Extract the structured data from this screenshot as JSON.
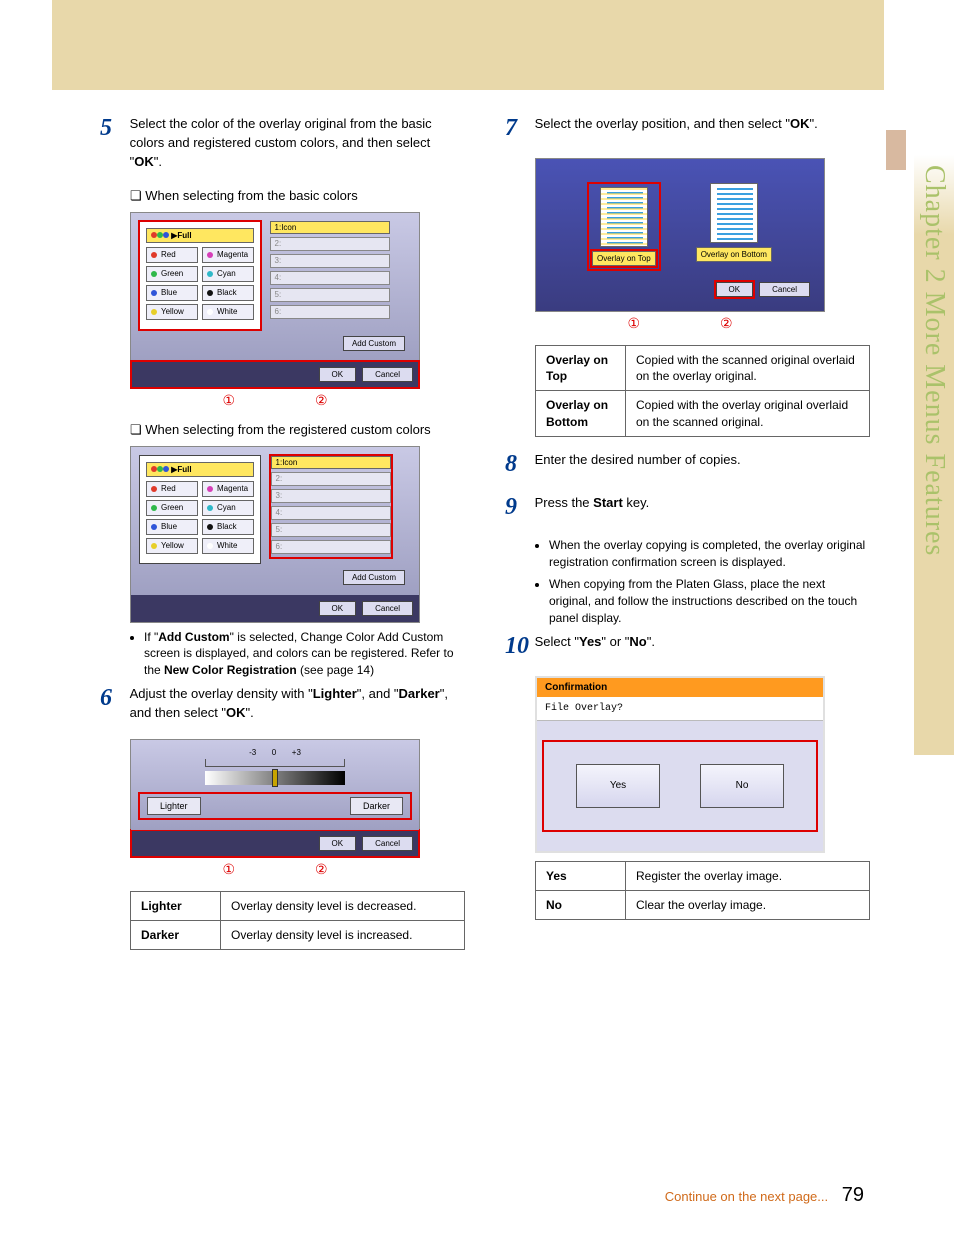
{
  "side_tab": "Chapter 2    More Menus Features",
  "page_number": "79",
  "continue_text": "Continue on the next page...",
  "left": {
    "step5": {
      "num": "5",
      "text_parts": [
        "Select the color of the overlay original from the basic colors and registered custom colors, and then select \"",
        "OK",
        "\"."
      ],
      "sub1": "When selecting from the basic colors",
      "sub2": "When selecting from the registered custom colors",
      "bullet_parts": [
        "If \"",
        "Add Custom",
        "\" is selected, Change Color Add Custom screen is displayed, and colors can be registered. Refer to the ",
        "New Color Registration",
        " (see page 14)"
      ]
    },
    "screenA": {
      "full_label": "Full",
      "colors": [
        [
          {
            "label": "Red",
            "hex": "#e03a2a"
          },
          {
            "label": "Magenta",
            "hex": "#d63fb8"
          }
        ],
        [
          {
            "label": "Green",
            "hex": "#2fb84a"
          },
          {
            "label": "Cyan",
            "hex": "#2fb8c8"
          }
        ],
        [
          {
            "label": "Blue",
            "hex": "#2f55d8"
          },
          {
            "label": "Black",
            "hex": "#111111"
          }
        ],
        [
          {
            "label": "Yellow",
            "hex": "#e7cf2a"
          },
          {
            "label": "White",
            "hex": "#ffffff"
          }
        ]
      ],
      "slot_head": "1:Icon",
      "slots": [
        "2:",
        "3:",
        "4:",
        "5:",
        "6:"
      ],
      "add_custom": "Add Custom",
      "ok": "OK",
      "cancel": "Cancel",
      "highlight_colorgrid": true,
      "highlight_slots": false,
      "highlight_footer": true
    },
    "screenB": {
      "highlight_colorgrid": false,
      "highlight_slots": true,
      "highlight_footer": false
    },
    "circ": {
      "one": "①",
      "two": "②"
    },
    "step6": {
      "num": "6",
      "text_parts": [
        "Adjust the overlay density with \"",
        "Lighter",
        "\", and \"",
        "Darker",
        "\", and then select \"",
        "OK",
        "\"."
      ]
    },
    "density_screen": {
      "neg": "-3",
      "zero": "0",
      "pos": "+3",
      "lighter": "Lighter",
      "darker": "Darker",
      "ok": "OK",
      "cancel": "Cancel"
    },
    "density_table": [
      {
        "h": "Lighter",
        "d": "Overlay density level is decreased."
      },
      {
        "h": "Darker",
        "d": "Overlay density level is increased."
      }
    ]
  },
  "right": {
    "step7": {
      "num": "7",
      "text_parts": [
        "Select the overlay position, and then select \"",
        "OK",
        "\"."
      ]
    },
    "overlay_screen": {
      "top_label": "Overlay on Top",
      "bottom_label": "Overlay on Bottom",
      "ok": "OK",
      "cancel": "Cancel"
    },
    "overlay_table": [
      {
        "h": "Overlay on Top",
        "d": "Copied with the scanned original overlaid on the overlay original."
      },
      {
        "h": "Overlay on Bottom",
        "d": "Copied with the overlay original overlaid on the scanned original."
      }
    ],
    "step8": {
      "num": "8",
      "text": "Enter the desired number of copies."
    },
    "step9": {
      "num": "9",
      "text_parts": [
        "Press the ",
        "Start",
        " key."
      ],
      "bullets": [
        "When the overlay copying is completed, the overlay original registration confirmation screen is displayed.",
        "When copying from the Platen Glass, place the next original, and follow the instructions described on the touch panel display."
      ]
    },
    "step10": {
      "num": "10",
      "text_parts": [
        "Select \"",
        "Yes",
        "\" or \"",
        "No",
        "\"."
      ]
    },
    "confirm_screen": {
      "title": "Confirmation",
      "msg": "File Overlay?",
      "yes": "Yes",
      "no": "No"
    },
    "yn_table": [
      {
        "h": "Yes",
        "d": "Register the overlay image."
      },
      {
        "h": "No",
        "d": "Clear the overlay image."
      }
    ]
  }
}
